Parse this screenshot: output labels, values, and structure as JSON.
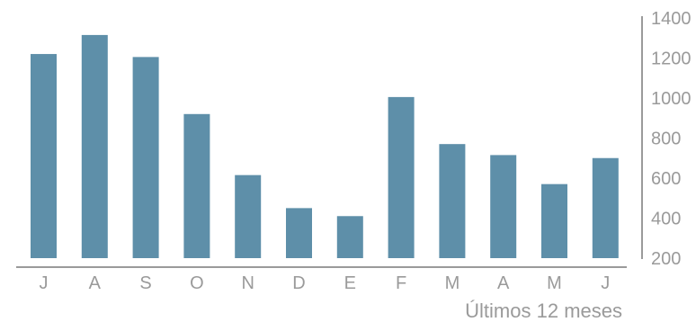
{
  "chart_data": {
    "type": "bar",
    "title": "",
    "xlabel": "Últimos 12 meses",
    "ylabel": "",
    "categories": [
      "J",
      "A",
      "S",
      "O",
      "N",
      "D",
      "E",
      "F",
      "M",
      "A",
      "M",
      "J"
    ],
    "values": [
      1220,
      1315,
      1205,
      920,
      615,
      450,
      410,
      1005,
      770,
      715,
      570,
      700
    ],
    "yticks": [
      200,
      400,
      600,
      800,
      1000,
      1200,
      1400
    ],
    "ylim": [
      200,
      1400
    ],
    "grid": false,
    "legend": "none",
    "y_axis_position": "right",
    "colors": {
      "bar": "#5e8fa9",
      "axis": "#9a9a9a",
      "text": "#9a9a9a"
    }
  }
}
